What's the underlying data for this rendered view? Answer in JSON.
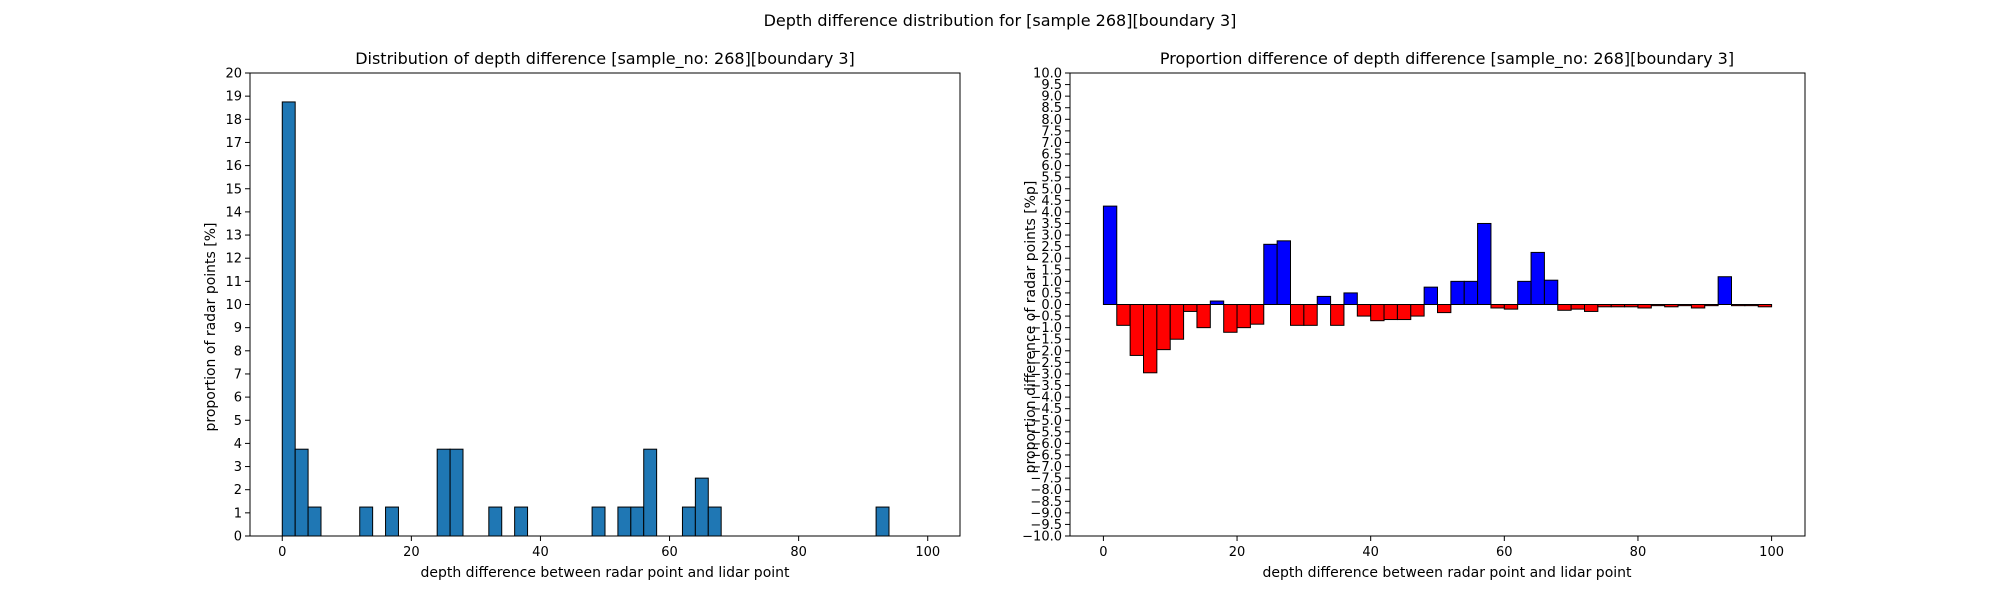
{
  "figure": {
    "suptitle": "Depth difference distribution for [sample 268][boundary 3]"
  },
  "chart_data": [
    {
      "type": "bar",
      "title": "Distribution of depth difference [sample_no: 268][boundary 3]",
      "xlabel": "depth difference between radar point and lidar point",
      "ylabel": "proportion of radar points [%]",
      "xlim": [
        -5,
        105
      ],
      "ylim": [
        0,
        20
      ],
      "xticks": [
        0,
        20,
        40,
        60,
        80,
        100
      ],
      "xtick_labels": [
        "0",
        "20",
        "40",
        "60",
        "80",
        "100"
      ],
      "yticks": [
        0,
        1,
        2,
        3,
        4,
        5,
        6,
        7,
        8,
        9,
        10,
        11,
        12,
        13,
        14,
        15,
        16,
        17,
        18,
        19,
        20
      ],
      "ytick_labels": [
        "0",
        "1",
        "2",
        "3",
        "4",
        "5",
        "6",
        "7",
        "8",
        "9",
        "10",
        "11",
        "12",
        "13",
        "14",
        "15",
        "16",
        "17",
        "18",
        "19",
        "20"
      ],
      "bin_width": 2,
      "bar_color": "#1f77b4",
      "edge_color": "#000000",
      "bins": [
        {
          "x": 0,
          "value": 18.75
        },
        {
          "x": 2,
          "value": 3.75
        },
        {
          "x": 4,
          "value": 1.25
        },
        {
          "x": 12,
          "value": 1.25
        },
        {
          "x": 16,
          "value": 1.25
        },
        {
          "x": 24,
          "value": 3.75
        },
        {
          "x": 26,
          "value": 3.75
        },
        {
          "x": 32,
          "value": 1.25
        },
        {
          "x": 36,
          "value": 1.25
        },
        {
          "x": 48,
          "value": 1.25
        },
        {
          "x": 52,
          "value": 1.25
        },
        {
          "x": 54,
          "value": 1.25
        },
        {
          "x": 56,
          "value": 3.75
        },
        {
          "x": 62,
          "value": 1.25
        },
        {
          "x": 64,
          "value": 2.5
        },
        {
          "x": 66,
          "value": 1.25
        },
        {
          "x": 92,
          "value": 1.25
        }
      ]
    },
    {
      "type": "bar",
      "title": "Proportion difference of depth difference [sample_no: 268][boundary 3]",
      "xlabel": "depth difference between radar point and lidar point",
      "ylabel": "proportion difference of radar points [%p]",
      "xlim": [
        -5,
        105
      ],
      "ylim": [
        -10,
        10
      ],
      "xticks": [
        0,
        20,
        40,
        60,
        80,
        100
      ],
      "xtick_labels": [
        "0",
        "20",
        "40",
        "60",
        "80",
        "100"
      ],
      "yticks": [
        -10,
        -9.5,
        -9,
        -8.5,
        -8,
        -7.5,
        -7,
        -6.5,
        -6,
        -5.5,
        -5,
        -4.5,
        -4,
        -3.5,
        -3,
        -2.5,
        -2,
        -1.5,
        -1,
        -0.5,
        0,
        0.5,
        1,
        1.5,
        2,
        2.5,
        3,
        3.5,
        4,
        4.5,
        5,
        5.5,
        6,
        6.5,
        7,
        7.5,
        8,
        8.5,
        9,
        9.5,
        10
      ],
      "ytick_labels": [
        "−10.0",
        "−9.5",
        "−9.0",
        "−8.5",
        "−8.0",
        "−7.5",
        "−7.0",
        "−6.5",
        "−6.0",
        "−5.5",
        "−5.0",
        "−4.5",
        "−4.0",
        "−3.5",
        "−3.0",
        "−2.5",
        "−2.0",
        "−1.5",
        "−1.0",
        "−0.5",
        "0.0",
        "0.5",
        "1.0",
        "1.5",
        "2.0",
        "2.5",
        "3.0",
        "3.5",
        "4.0",
        "4.5",
        "5.0",
        "5.5",
        "6.0",
        "6.5",
        "7.0",
        "7.5",
        "8.0",
        "8.5",
        "9.0",
        "9.5",
        "10.0"
      ],
      "bin_width": 2,
      "positive_color": "#0000ff",
      "negative_color": "#ff0000",
      "edge_color": "#000000",
      "bins": [
        {
          "x": 0,
          "value": 4.25
        },
        {
          "x": 2,
          "value": -0.9
        },
        {
          "x": 4,
          "value": -2.2
        },
        {
          "x": 6,
          "value": -2.95
        },
        {
          "x": 8,
          "value": -1.95
        },
        {
          "x": 10,
          "value": -1.5
        },
        {
          "x": 12,
          "value": -0.3
        },
        {
          "x": 14,
          "value": -1.0
        },
        {
          "x": 16,
          "value": 0.15
        },
        {
          "x": 18,
          "value": -1.2
        },
        {
          "x": 20,
          "value": -1.0
        },
        {
          "x": 22,
          "value": -0.85
        },
        {
          "x": 24,
          "value": 2.6
        },
        {
          "x": 26,
          "value": 2.75
        },
        {
          "x": 28,
          "value": -0.9
        },
        {
          "x": 30,
          "value": -0.9
        },
        {
          "x": 32,
          "value": 0.35
        },
        {
          "x": 34,
          "value": -0.9
        },
        {
          "x": 36,
          "value": 0.5
        },
        {
          "x": 38,
          "value": -0.5
        },
        {
          "x": 40,
          "value": -0.7
        },
        {
          "x": 42,
          "value": -0.65
        },
        {
          "x": 44,
          "value": -0.65
        },
        {
          "x": 46,
          "value": -0.5
        },
        {
          "x": 48,
          "value": 0.75
        },
        {
          "x": 50,
          "value": -0.35
        },
        {
          "x": 52,
          "value": 1.0
        },
        {
          "x": 54,
          "value": 1.0
        },
        {
          "x": 56,
          "value": 3.5
        },
        {
          "x": 58,
          "value": -0.15
        },
        {
          "x": 60,
          "value": -0.2
        },
        {
          "x": 62,
          "value": 1.0
        },
        {
          "x": 64,
          "value": 2.25
        },
        {
          "x": 66,
          "value": 1.05
        },
        {
          "x": 68,
          "value": -0.25
        },
        {
          "x": 70,
          "value": -0.2
        },
        {
          "x": 72,
          "value": -0.3
        },
        {
          "x": 74,
          "value": -0.1
        },
        {
          "x": 76,
          "value": -0.1
        },
        {
          "x": 78,
          "value": -0.1
        },
        {
          "x": 80,
          "value": -0.15
        },
        {
          "x": 82,
          "value": -0.05
        },
        {
          "x": 84,
          "value": -0.1
        },
        {
          "x": 86,
          "value": -0.05
        },
        {
          "x": 88,
          "value": -0.15
        },
        {
          "x": 90,
          "value": -0.05
        },
        {
          "x": 92,
          "value": 1.2
        },
        {
          "x": 94,
          "value": -0.05
        },
        {
          "x": 96,
          "value": -0.05
        },
        {
          "x": 98,
          "value": -0.1
        }
      ]
    }
  ]
}
